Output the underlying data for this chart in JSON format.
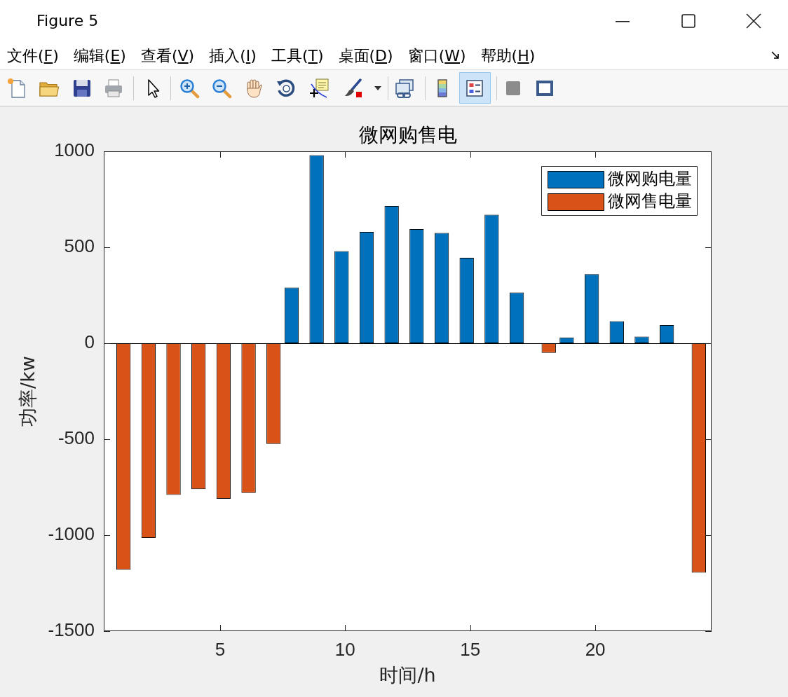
{
  "chart_data": {
    "type": "bar",
    "title": "微网购售电",
    "xlabel": "时间/h",
    "ylabel": "功率/kw",
    "x": [
      1,
      2,
      3,
      4,
      5,
      6,
      7,
      8,
      9,
      10,
      11,
      12,
      13,
      14,
      15,
      16,
      17,
      18,
      19,
      20,
      21,
      22,
      23,
      24
    ],
    "series": [
      {
        "name": "微网购电量",
        "color": "#0072bd",
        "values": [
          null,
          null,
          null,
          null,
          null,
          null,
          null,
          290,
          980,
          480,
          580,
          715,
          595,
          575,
          445,
          670,
          265,
          null,
          30,
          360,
          115,
          35,
          95,
          null
        ]
      },
      {
        "name": "微网售电量",
        "color": "#d95319",
        "values": [
          -1180,
          -1015,
          -790,
          -760,
          -810,
          -780,
          -525,
          null,
          null,
          null,
          null,
          null,
          null,
          null,
          null,
          null,
          null,
          -50,
          null,
          null,
          null,
          null,
          null,
          -1195
        ]
      }
    ],
    "xlim": [
      0.35,
      24.65
    ],
    "xticks": [
      5,
      10,
      15,
      20
    ],
    "ylim": [
      -1500,
      1000
    ],
    "yticks": [
      -1500,
      -1000,
      -500,
      0,
      500,
      1000
    ],
    "legend": "top right",
    "ref_lines": [
      {
        "axis": "y",
        "value": 0,
        "color": "#000000"
      }
    ],
    "annotations": [
      "Figure 5",
      "文件(F)",
      "编辑(E)",
      "查看(V)",
      "插入(I)",
      "工具(T)",
      "桌面(D)",
      "窗口(W)",
      "帮助(H)"
    ]
  }
}
